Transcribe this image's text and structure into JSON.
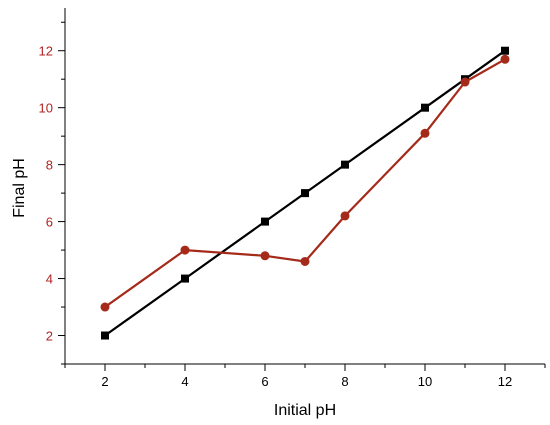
{
  "chart_data": {
    "type": "line",
    "xlabel": "Initial pH",
    "ylabel": "Final pH",
    "xlim": [
      1,
      13
    ],
    "ylim": [
      1,
      13.5
    ],
    "x_ticks": [
      2,
      4,
      6,
      8,
      10,
      12
    ],
    "y_ticks": [
      2,
      4,
      6,
      8,
      10,
      12
    ],
    "grid": false,
    "legend": "none",
    "x_tick_color": "#000000",
    "y_tick_color": "#b22222",
    "series": [
      {
        "x": [
          2,
          4,
          6,
          7,
          8,
          10,
          11,
          12
        ],
        "y": [
          2,
          4,
          6,
          7,
          8,
          10,
          11,
          12
        ],
        "color": "#000000",
        "marker": "square"
      },
      {
        "x": [
          2,
          4,
          6,
          7,
          8,
          10,
          11,
          12
        ],
        "y": [
          3.0,
          5.0,
          4.8,
          4.6,
          6.2,
          9.1,
          10.9,
          11.7
        ],
        "color": "#a52a1a",
        "marker": "circle"
      }
    ]
  }
}
